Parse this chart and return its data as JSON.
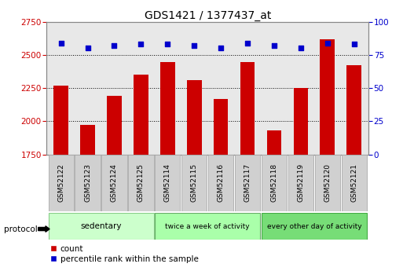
{
  "title": "GDS1421 / 1377437_at",
  "samples": [
    "GSM52122",
    "GSM52123",
    "GSM52124",
    "GSM52125",
    "GSM52114",
    "GSM52115",
    "GSM52116",
    "GSM52117",
    "GSM52118",
    "GSM52119",
    "GSM52120",
    "GSM52121"
  ],
  "counts": [
    2270,
    1970,
    2190,
    2350,
    2445,
    2310,
    2170,
    2445,
    1930,
    2250,
    2620,
    2420
  ],
  "percentiles": [
    84,
    80,
    82,
    83,
    83,
    82,
    80,
    84,
    82,
    80,
    84,
    83
  ],
  "ylim_left": [
    1750,
    2750
  ],
  "ylim_right": [
    0,
    100
  ],
  "yticks_left": [
    1750,
    2000,
    2250,
    2500,
    2750
  ],
  "yticks_right": [
    0,
    25,
    50,
    75,
    100
  ],
  "groups": [
    {
      "label": "sedentary",
      "start": 0,
      "end": 4,
      "color": "#ccffcc",
      "border": "#88cc88"
    },
    {
      "label": "twice a week of activity",
      "start": 4,
      "end": 8,
      "color": "#aaffaa",
      "border": "#66aa66"
    },
    {
      "label": "every other day of activity",
      "start": 8,
      "end": 12,
      "color": "#77dd77",
      "border": "#44aa44"
    }
  ],
  "bar_color": "#cc0000",
  "dot_color": "#0000cc",
  "bar_width": 0.55,
  "background_color": "#ffffff",
  "plot_bg_color": "#e8e8e8",
  "grid_color": "#000000",
  "label_color_left": "#cc0000",
  "label_color_right": "#0000cc",
  "legend_count_color": "#cc0000",
  "legend_pct_color": "#0000cc",
  "sample_box_color": "#d0d0d0",
  "sample_box_edge": "#aaaaaa"
}
